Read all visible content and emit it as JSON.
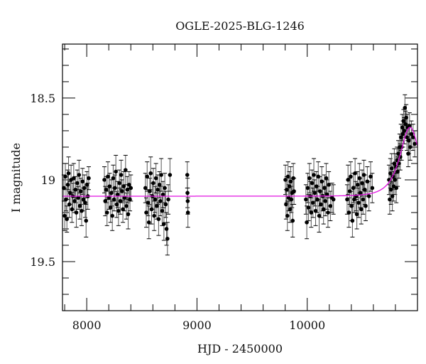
{
  "chart_data": {
    "type": "scatter",
    "title": "OGLE-2025-BLG-1246",
    "xlabel": "HJD - 2450000",
    "ylabel": "I magnitude",
    "xlim": [
      7780,
      11000
    ],
    "ylim": [
      18.17,
      19.8
    ],
    "y_inverted": true,
    "grid": false,
    "x_ticks": [
      8000,
      9000,
      10000
    ],
    "x_tick_labels": [
      "8000",
      "9000",
      "10000"
    ],
    "x_minor_step": 200,
    "y_ticks": [
      18.5,
      19,
      19.5
    ],
    "y_tick_labels": [
      "18.5",
      "19",
      "19.5"
    ],
    "y_minor_step": 0.1,
    "colors": {
      "points": "#000000",
      "errorbars": "#555555",
      "model": "#e010e0",
      "axes": "#000000"
    },
    "model": {
      "type": "paczynski",
      "t0": 10932,
      "tE": 120,
      "u0": 0.85,
      "baseline_mag": 19.1
    },
    "points_format": [
      "hjd",
      "mag",
      "err"
    ],
    "points": [
      [
        7792,
        19.05,
        0.08
      ],
      [
        7800,
        19.22,
        0.09
      ],
      [
        7806,
        18.98,
        0.08
      ],
      [
        7812,
        19.12,
        0.07
      ],
      [
        7820,
        19.24,
        0.08
      ],
      [
        7828,
        19.03,
        0.09
      ],
      [
        7835,
        18.96,
        0.1
      ],
      [
        7842,
        19.15,
        0.08
      ],
      [
        7850,
        19.08,
        0.07
      ],
      [
        7858,
        19.0,
        0.09
      ],
      [
        7866,
        19.18,
        0.08
      ],
      [
        7874,
        19.1,
        0.08
      ],
      [
        7882,
        18.99,
        0.09
      ],
      [
        7890,
        19.13,
        0.07
      ],
      [
        7898,
        19.06,
        0.08
      ],
      [
        7906,
        19.2,
        0.09
      ],
      [
        7914,
        19.02,
        0.08
      ],
      [
        7922,
        19.11,
        0.07
      ],
      [
        7930,
        18.97,
        0.09
      ],
      [
        7938,
        19.16,
        0.08
      ],
      [
        7946,
        19.07,
        0.08
      ],
      [
        7954,
        19.19,
        0.09
      ],
      [
        7962,
        19.01,
        0.08
      ],
      [
        7970,
        19.12,
        0.07
      ],
      [
        7978,
        19.05,
        0.08
      ],
      [
        7986,
        19.14,
        0.09
      ],
      [
        7994,
        19.25,
        0.1
      ],
      [
        8002,
        19.03,
        0.08
      ],
      [
        8010,
        19.1,
        0.08
      ],
      [
        8018,
        18.99,
        0.07
      ],
      [
        8160,
        19.0,
        0.08
      ],
      [
        8168,
        19.13,
        0.09
      ],
      [
        8176,
        19.06,
        0.08
      ],
      [
        8184,
        19.2,
        0.08
      ],
      [
        8192,
        18.98,
        0.09
      ],
      [
        8200,
        19.11,
        0.07
      ],
      [
        8208,
        19.04,
        0.08
      ],
      [
        8216,
        19.17,
        0.09
      ],
      [
        8224,
        19.08,
        0.08
      ],
      [
        8232,
        19.22,
        0.09
      ],
      [
        8240,
        18.99,
        0.08
      ],
      [
        8248,
        19.12,
        0.07
      ],
      [
        8256,
        19.05,
        0.08
      ],
      [
        8264,
        18.95,
        0.1
      ],
      [
        8272,
        19.15,
        0.08
      ],
      [
        8280,
        19.09,
        0.08
      ],
      [
        8288,
        19.19,
        0.09
      ],
      [
        8296,
        19.02,
        0.08
      ],
      [
        8304,
        19.13,
        0.08
      ],
      [
        8312,
        18.97,
        0.09
      ],
      [
        8320,
        19.07,
        0.07
      ],
      [
        8328,
        19.18,
        0.08
      ],
      [
        8336,
        19.04,
        0.09
      ],
      [
        8344,
        19.11,
        0.08
      ],
      [
        8352,
        18.94,
        0.09
      ],
      [
        8360,
        19.16,
        0.08
      ],
      [
        8368,
        19.06,
        0.08
      ],
      [
        8376,
        19.21,
        0.09
      ],
      [
        8384,
        19.03,
        0.08
      ],
      [
        8392,
        19.12,
        0.07
      ],
      [
        8400,
        19.05,
        0.08
      ],
      [
        8532,
        19.05,
        0.09
      ],
      [
        8540,
        19.2,
        0.09
      ],
      [
        8548,
        18.98,
        0.09
      ],
      [
        8556,
        19.14,
        0.08
      ],
      [
        8564,
        19.26,
        0.1
      ],
      [
        8572,
        19.07,
        0.08
      ],
      [
        8580,
        18.96,
        0.1
      ],
      [
        8588,
        19.18,
        0.09
      ],
      [
        8596,
        19.1,
        0.08
      ],
      [
        8604,
        19.02,
        0.09
      ],
      [
        8612,
        19.22,
        0.09
      ],
      [
        8620,
        19.12,
        0.08
      ],
      [
        8628,
        18.99,
        0.09
      ],
      [
        8636,
        19.16,
        0.08
      ],
      [
        8644,
        19.06,
        0.09
      ],
      [
        8652,
        19.24,
        0.1
      ],
      [
        8660,
        19.03,
        0.08
      ],
      [
        8668,
        19.13,
        0.09
      ],
      [
        8676,
        18.97,
        0.1
      ],
      [
        8684,
        19.19,
        0.09
      ],
      [
        8692,
        19.09,
        0.08
      ],
      [
        8700,
        19.27,
        0.1
      ],
      [
        8708,
        19.05,
        0.09
      ],
      [
        8716,
        19.15,
        0.08
      ],
      [
        8724,
        19.3,
        0.1
      ],
      [
        8732,
        19.36,
        0.1
      ],
      [
        8740,
        19.12,
        0.09
      ],
      [
        8755,
        18.97,
        0.1
      ],
      [
        8912,
        18.97,
        0.08
      ],
      [
        8914,
        19.08,
        0.09
      ],
      [
        8916,
        19.13,
        0.08
      ],
      [
        8918,
        19.2,
        0.09
      ],
      [
        9802,
        19.0,
        0.09
      ],
      [
        9808,
        19.15,
        0.09
      ],
      [
        9814,
        19.06,
        0.08
      ],
      [
        9820,
        19.22,
        0.09
      ],
      [
        9826,
        18.98,
        0.09
      ],
      [
        9832,
        19.11,
        0.08
      ],
      [
        9838,
        19.04,
        0.09
      ],
      [
        9844,
        19.18,
        0.08
      ],
      [
        9850,
        19.01,
        0.09
      ],
      [
        9856,
        19.12,
        0.08
      ],
      [
        9862,
        19.08,
        0.09
      ],
      [
        9868,
        19.25,
        0.1
      ],
      [
        9874,
        18.99,
        0.09
      ],
      [
        9880,
        19.07,
        0.08
      ],
      [
        9988,
        19.12,
        0.09
      ],
      [
        9996,
        19.26,
        0.1
      ],
      [
        10004,
        19.05,
        0.09
      ],
      [
        10012,
        19.17,
        0.08
      ],
      [
        10020,
        18.99,
        0.09
      ],
      [
        10028,
        19.1,
        0.09
      ],
      [
        10036,
        19.2,
        0.09
      ],
      [
        10044,
        19.02,
        0.08
      ],
      [
        10052,
        19.14,
        0.09
      ],
      [
        10060,
        18.97,
        0.1
      ],
      [
        10068,
        19.08,
        0.08
      ],
      [
        10076,
        19.19,
        0.09
      ],
      [
        10084,
        19.04,
        0.09
      ],
      [
        10092,
        19.12,
        0.08
      ],
      [
        10100,
        18.98,
        0.09
      ],
      [
        10108,
        19.22,
        0.1
      ],
      [
        10116,
        19.07,
        0.09
      ],
      [
        10124,
        19.15,
        0.08
      ],
      [
        10132,
        19.01,
        0.09
      ],
      [
        10140,
        19.1,
        0.09
      ],
      [
        10148,
        19.18,
        0.09
      ],
      [
        10156,
        19.05,
        0.08
      ],
      [
        10164,
        19.13,
        0.09
      ],
      [
        10172,
        18.99,
        0.09
      ],
      [
        10180,
        19.09,
        0.09
      ],
      [
        10188,
        19.2,
        0.09
      ],
      [
        10196,
        19.03,
        0.08
      ],
      [
        10210,
        19.16,
        0.09
      ],
      [
        10225,
        19.11,
        0.09
      ],
      [
        10238,
        19.12,
        0.09
      ],
      [
        10362,
        19.12,
        0.09
      ],
      [
        10370,
        19.0,
        0.09
      ],
      [
        10378,
        19.2,
        0.09
      ],
      [
        10386,
        19.07,
        0.08
      ],
      [
        10394,
        18.98,
        0.09
      ],
      [
        10402,
        19.16,
        0.09
      ],
      [
        10410,
        19.25,
        0.1
      ],
      [
        10418,
        19.05,
        0.09
      ],
      [
        10426,
        19.12,
        0.08
      ],
      [
        10434,
        18.96,
        0.09
      ],
      [
        10442,
        19.1,
        0.09
      ],
      [
        10450,
        19.21,
        0.09
      ],
      [
        10458,
        19.03,
        0.08
      ],
      [
        10466,
        19.14,
        0.09
      ],
      [
        10474,
        18.99,
        0.09
      ],
      [
        10482,
        19.08,
        0.09
      ],
      [
        10490,
        19.18,
        0.09
      ],
      [
        10498,
        19.02,
        0.08
      ],
      [
        10506,
        19.12,
        0.09
      ],
      [
        10514,
        18.97,
        0.09
      ],
      [
        10522,
        19.06,
        0.09
      ],
      [
        10530,
        19.16,
        0.09
      ],
      [
        10545,
        19.01,
        0.09
      ],
      [
        10560,
        19.1,
        0.09
      ],
      [
        10575,
        18.98,
        0.09
      ],
      [
        10590,
        19.05,
        0.09
      ],
      [
        10742,
        19.0,
        0.09
      ],
      [
        10748,
        19.12,
        0.09
      ],
      [
        10754,
        18.96,
        0.09
      ],
      [
        10760,
        19.06,
        0.09
      ],
      [
        10766,
        18.93,
        0.09
      ],
      [
        10772,
        19.1,
        0.09
      ],
      [
        10778,
        18.98,
        0.08
      ],
      [
        10784,
        19.04,
        0.09
      ],
      [
        10790,
        18.9,
        0.09
      ],
      [
        10796,
        19.0,
        0.09
      ],
      [
        10802,
        18.92,
        0.08
      ],
      [
        10808,
        19.05,
        0.09
      ],
      [
        10814,
        18.88,
        0.08
      ],
      [
        10820,
        18.95,
        0.09
      ],
      [
        10826,
        18.84,
        0.08
      ],
      [
        10832,
        18.9,
        0.09
      ],
      [
        10838,
        18.8,
        0.08
      ],
      [
        10844,
        18.86,
        0.08
      ],
      [
        10850,
        18.74,
        0.08
      ],
      [
        10856,
        18.8,
        0.08
      ],
      [
        10862,
        18.68,
        0.08
      ],
      [
        10868,
        18.72,
        0.08
      ],
      [
        10874,
        18.64,
        0.07
      ],
      [
        10880,
        18.7,
        0.08
      ],
      [
        10886,
        18.56,
        0.08
      ],
      [
        10892,
        18.66,
        0.08
      ],
      [
        10898,
        18.62,
        0.08
      ],
      [
        10904,
        18.74,
        0.08
      ],
      [
        10910,
        18.68,
        0.08
      ],
      [
        10916,
        18.84,
        0.08
      ],
      [
        10922,
        18.76,
        0.08
      ],
      [
        10928,
        18.67,
        0.08
      ],
      [
        10934,
        18.8,
        0.08
      ],
      [
        10945,
        18.72,
        0.08
      ],
      [
        10960,
        18.74,
        0.08
      ],
      [
        10975,
        18.78,
        0.08
      ]
    ]
  }
}
